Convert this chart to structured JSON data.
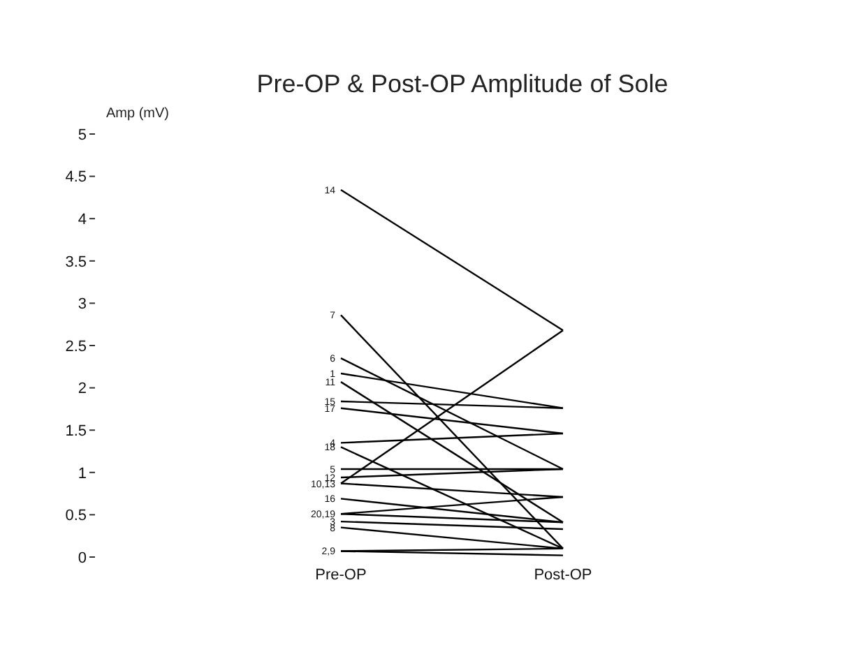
{
  "chart_data": {
    "type": "line",
    "title": "Pre-OP & Post-OP Amplitude of Sole",
    "ylabel": "Amp (mV)",
    "categories": [
      "Pre-OP",
      "Post-OP"
    ],
    "ylim": [
      0,
      5
    ],
    "yticks": [
      0,
      0.5,
      1,
      1.5,
      2,
      2.5,
      3,
      3.5,
      4,
      4.5,
      5
    ],
    "grid": false,
    "series": [
      {
        "color": "#000000",
        "values": [
          4.34,
          2.68
        ]
      },
      {
        "color": "#000000",
        "values": [
          2.86,
          0.1
        ]
      },
      {
        "color": "#000000",
        "values": [
          2.35,
          1.04
        ]
      },
      {
        "color": "#000000",
        "values": [
          2.17,
          1.76
        ]
      },
      {
        "color": "#000000",
        "values": [
          2.07,
          0.41
        ]
      },
      {
        "color": "#000000",
        "values": [
          1.84,
          1.76
        ]
      },
      {
        "color": "#000000",
        "values": [
          1.76,
          1.46
        ]
      },
      {
        "color": "#000000",
        "values": [
          1.35,
          1.46
        ]
      },
      {
        "color": "#000000",
        "values": [
          1.3,
          0.1
        ]
      },
      {
        "color": "#000000",
        "values": [
          1.04,
          1.04
        ]
      },
      {
        "color": "#000000",
        "values": [
          0.94,
          1.04
        ]
      },
      {
        "color": "#000000",
        "values": [
          0.87,
          2.68
        ]
      },
      {
        "color": "#000000",
        "values": [
          0.87,
          0.71
        ]
      },
      {
        "color": "#000000",
        "values": [
          0.69,
          0.41
        ]
      },
      {
        "color": "#000000",
        "values": [
          0.51,
          0.71
        ]
      },
      {
        "color": "#000000",
        "values": [
          0.51,
          0.41
        ]
      },
      {
        "color": "#000000",
        "values": [
          0.42,
          0.33
        ]
      },
      {
        "color": "#000000",
        "values": [
          0.35,
          0.1
        ]
      },
      {
        "color": "#000000",
        "values": [
          0.07,
          0.02
        ]
      },
      {
        "color": "#000000",
        "values": [
          0.07,
          0.1
        ]
      }
    ],
    "annotations": [
      {
        "text": "14",
        "x": "Pre-OP",
        "y": 4.34
      },
      {
        "text": "7",
        "x": "Pre-OP",
        "y": 2.86
      },
      {
        "text": "6",
        "x": "Pre-OP",
        "y": 2.35
      },
      {
        "text": "1",
        "x": "Pre-OP",
        "y": 2.17
      },
      {
        "text": "11",
        "x": "Pre-OP",
        "y": 2.07
      },
      {
        "text": "15",
        "x": "Pre-OP",
        "y": 1.84
      },
      {
        "text": "17",
        "x": "Pre-OP",
        "y": 1.76
      },
      {
        "text": "4",
        "x": "Pre-OP",
        "y": 1.35
      },
      {
        "text": "18",
        "x": "Pre-OP",
        "y": 1.3
      },
      {
        "text": "5",
        "x": "Pre-OP",
        "y": 1.04
      },
      {
        "text": "12",
        "x": "Pre-OP",
        "y": 0.94
      },
      {
        "text": "10,13",
        "x": "Pre-OP",
        "y": 0.87
      },
      {
        "text": "16",
        "x": "Pre-OP",
        "y": 0.69
      },
      {
        "text": "20,19",
        "x": "Pre-OP",
        "y": 0.51
      },
      {
        "text": "3",
        "x": "Pre-OP",
        "y": 0.42
      },
      {
        "text": "8",
        "x": "Pre-OP",
        "y": 0.35
      },
      {
        "text": "2,9",
        "x": "Pre-OP",
        "y": 0.07
      }
    ]
  }
}
